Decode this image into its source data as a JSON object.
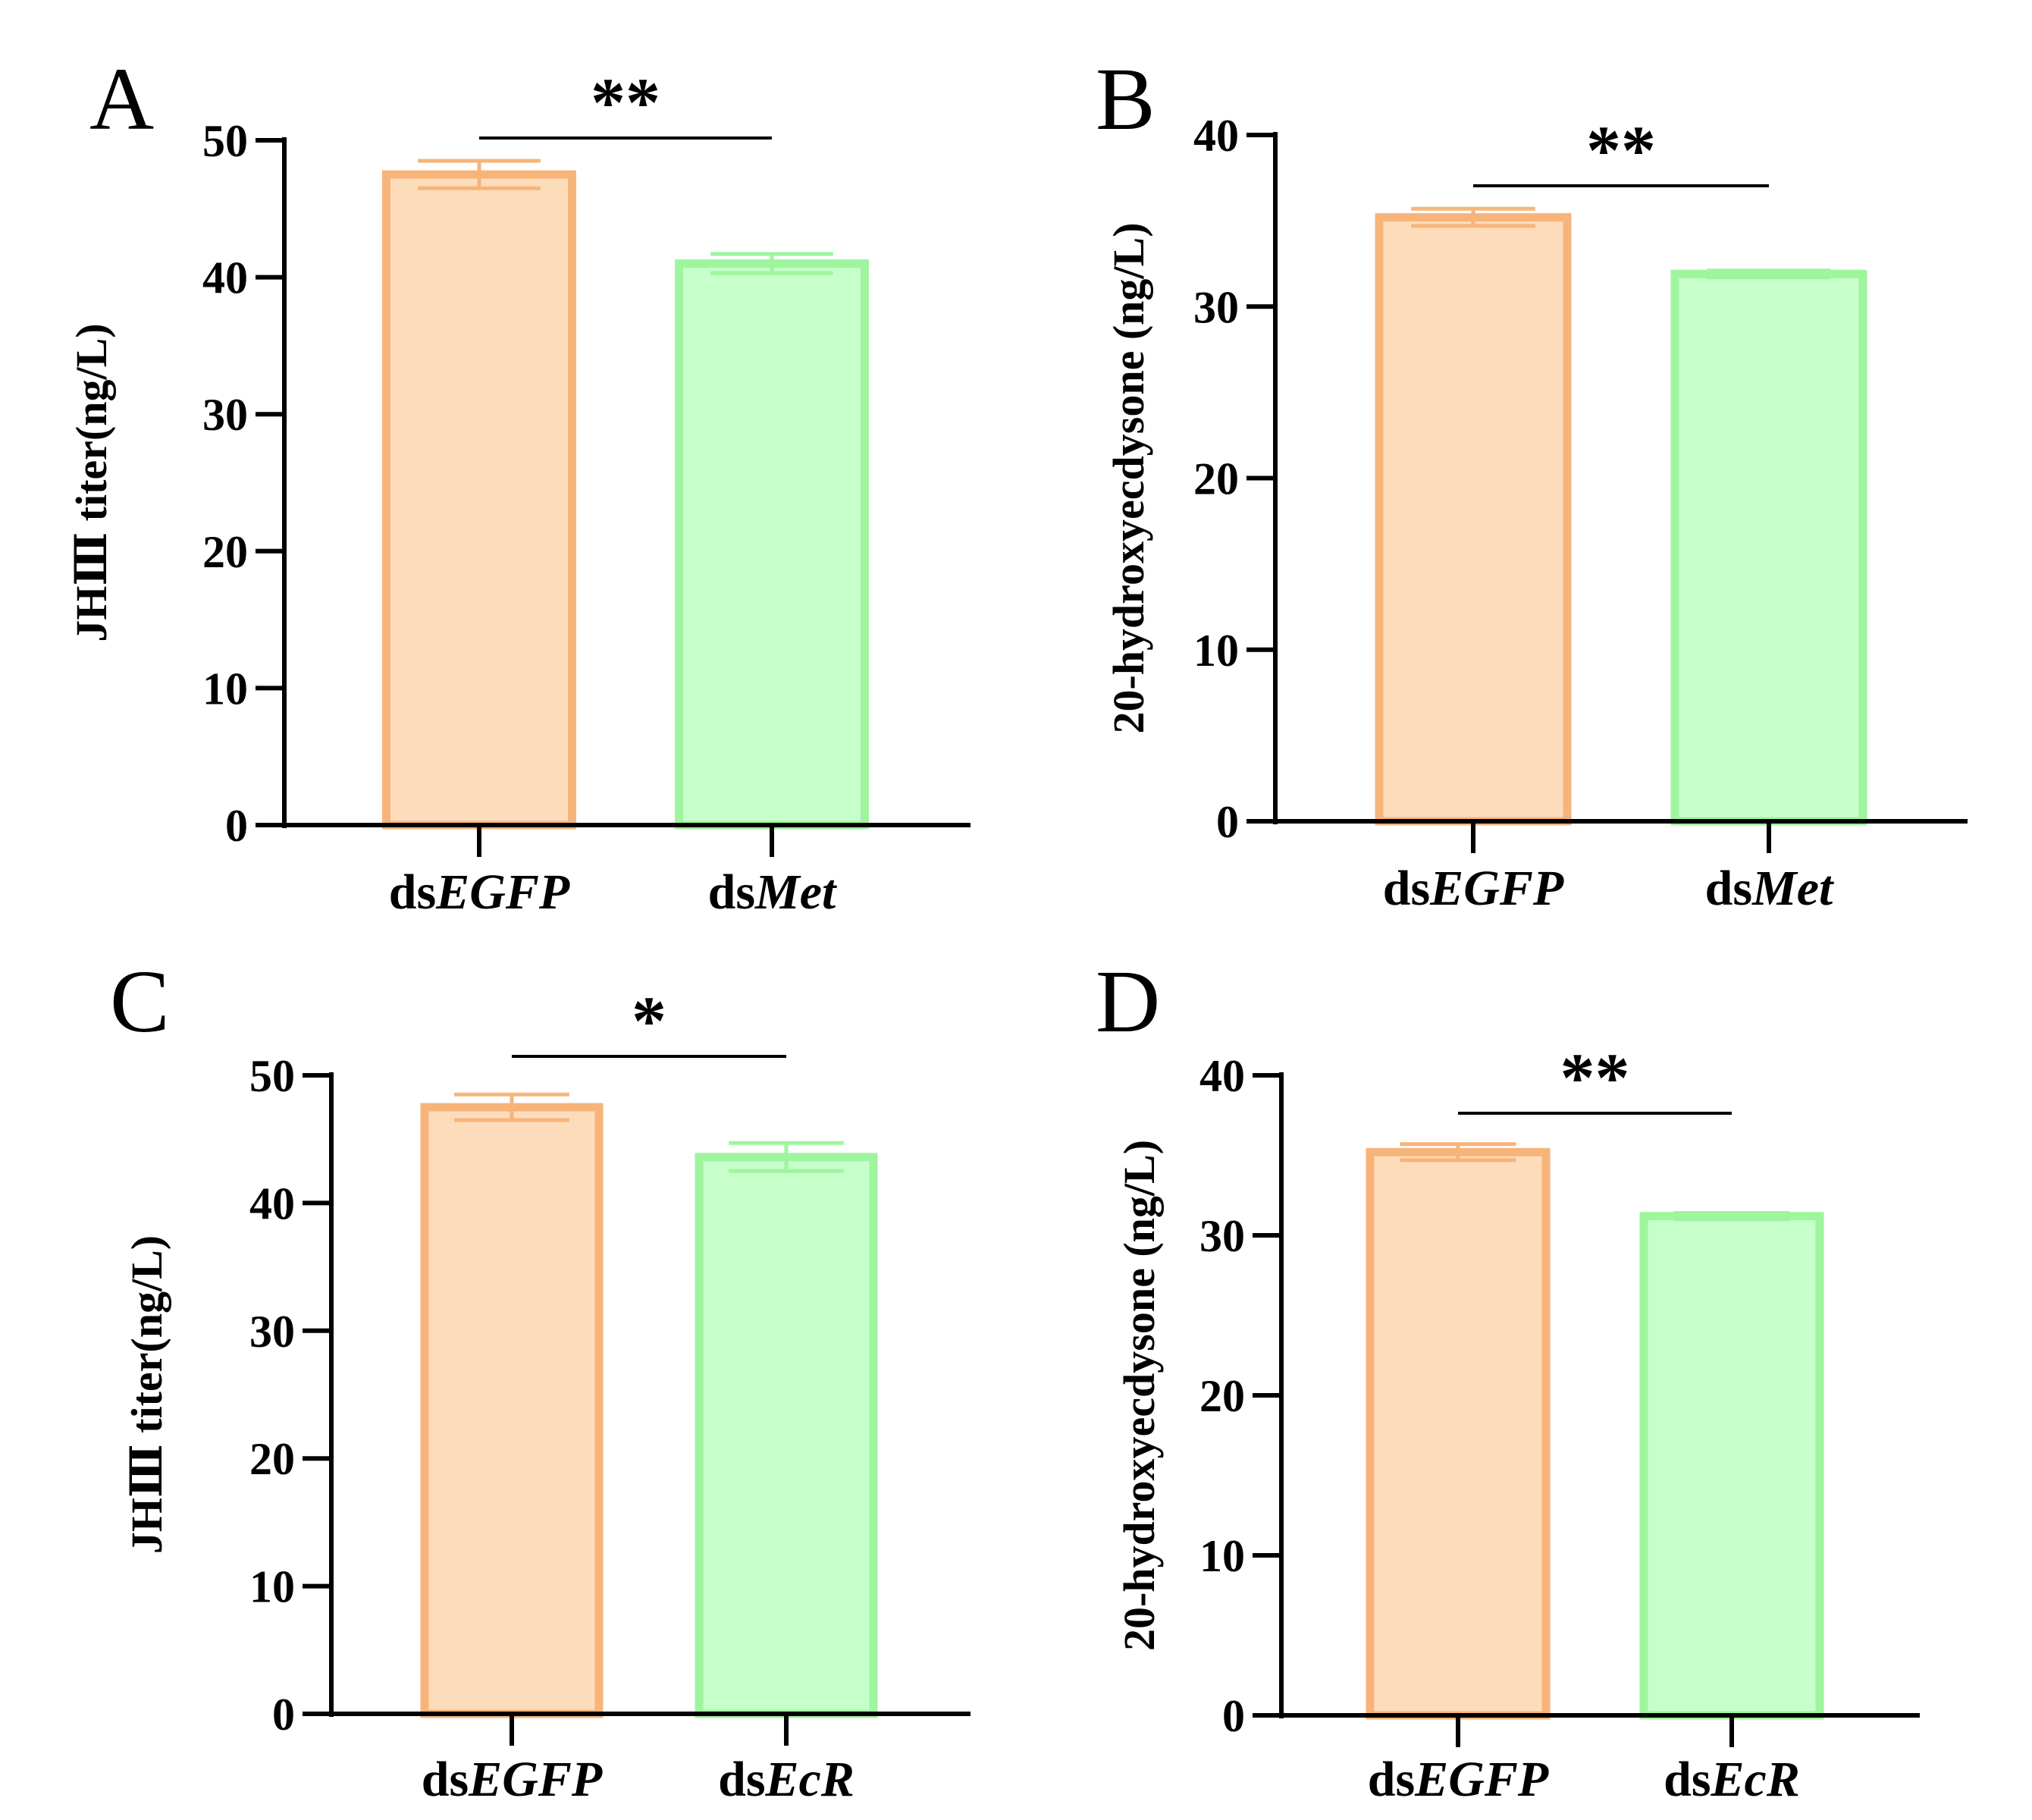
{
  "chart_data": [
    {
      "panel": "A",
      "type": "bar",
      "categories": [
        {
          "prefix": "ds",
          "gene": "EGFP"
        },
        {
          "prefix": "ds",
          "gene": "Met"
        }
      ],
      "values": [
        47.5,
        41.0
      ],
      "errors": [
        1.0,
        0.7
      ],
      "ylabel": "JHⅢ titer(ng/L)",
      "ylim": [
        0,
        50
      ],
      "ticks": [
        0,
        10,
        20,
        30,
        40,
        50
      ],
      "significance": "**",
      "colors": {
        "fill": [
          "#fddcbc",
          "#c6ffc9"
        ],
        "stroke": [
          "#f7b47a",
          "#9ef59e"
        ]
      }
    },
    {
      "panel": "B",
      "type": "bar",
      "categories": [
        {
          "prefix": "ds",
          "gene": "EGFP"
        },
        {
          "prefix": "ds",
          "gene": "Met"
        }
      ],
      "values": [
        35.2,
        31.9
      ],
      "errors": [
        0.5,
        0.2
      ],
      "ylabel": "20-hydroxyecdysone (ng/L)",
      "ylim": [
        0,
        40
      ],
      "ticks": [
        0,
        10,
        20,
        30,
        40
      ],
      "significance": "**",
      "colors": {
        "fill": [
          "#fddcbc",
          "#c6ffc9"
        ],
        "stroke": [
          "#f7b47a",
          "#9ef59e"
        ]
      }
    },
    {
      "panel": "C",
      "type": "bar",
      "categories": [
        {
          "prefix": "ds",
          "gene": "EGFP"
        },
        {
          "prefix": "ds",
          "gene": "EcR"
        }
      ],
      "values": [
        47.5,
        43.6
      ],
      "errors": [
        1.0,
        1.1
      ],
      "ylabel": "JHⅢ titer(ng/L)",
      "ylim": [
        0,
        50
      ],
      "ticks": [
        0,
        10,
        20,
        30,
        40,
        50
      ],
      "significance": "*",
      "colors": {
        "fill": [
          "#fddcbc",
          "#c6ffc9"
        ],
        "stroke": [
          "#f7b47a",
          "#9ef59e"
        ]
      }
    },
    {
      "panel": "D",
      "type": "bar",
      "categories": [
        {
          "prefix": "ds",
          "gene": "EGFP"
        },
        {
          "prefix": "ds",
          "gene": "EcR"
        }
      ],
      "values": [
        35.2,
        31.2
      ],
      "errors": [
        0.5,
        0.2
      ],
      "ylabel": "20-hydroxyecdysone (ng/L)",
      "ylim": [
        0,
        40
      ],
      "ticks": [
        0,
        10,
        20,
        30,
        40
      ],
      "significance": "**",
      "colors": {
        "fill": [
          "#fddcbc",
          "#c6ffc9"
        ],
        "stroke": [
          "#f7b47a",
          "#9ef59e"
        ]
      }
    }
  ]
}
